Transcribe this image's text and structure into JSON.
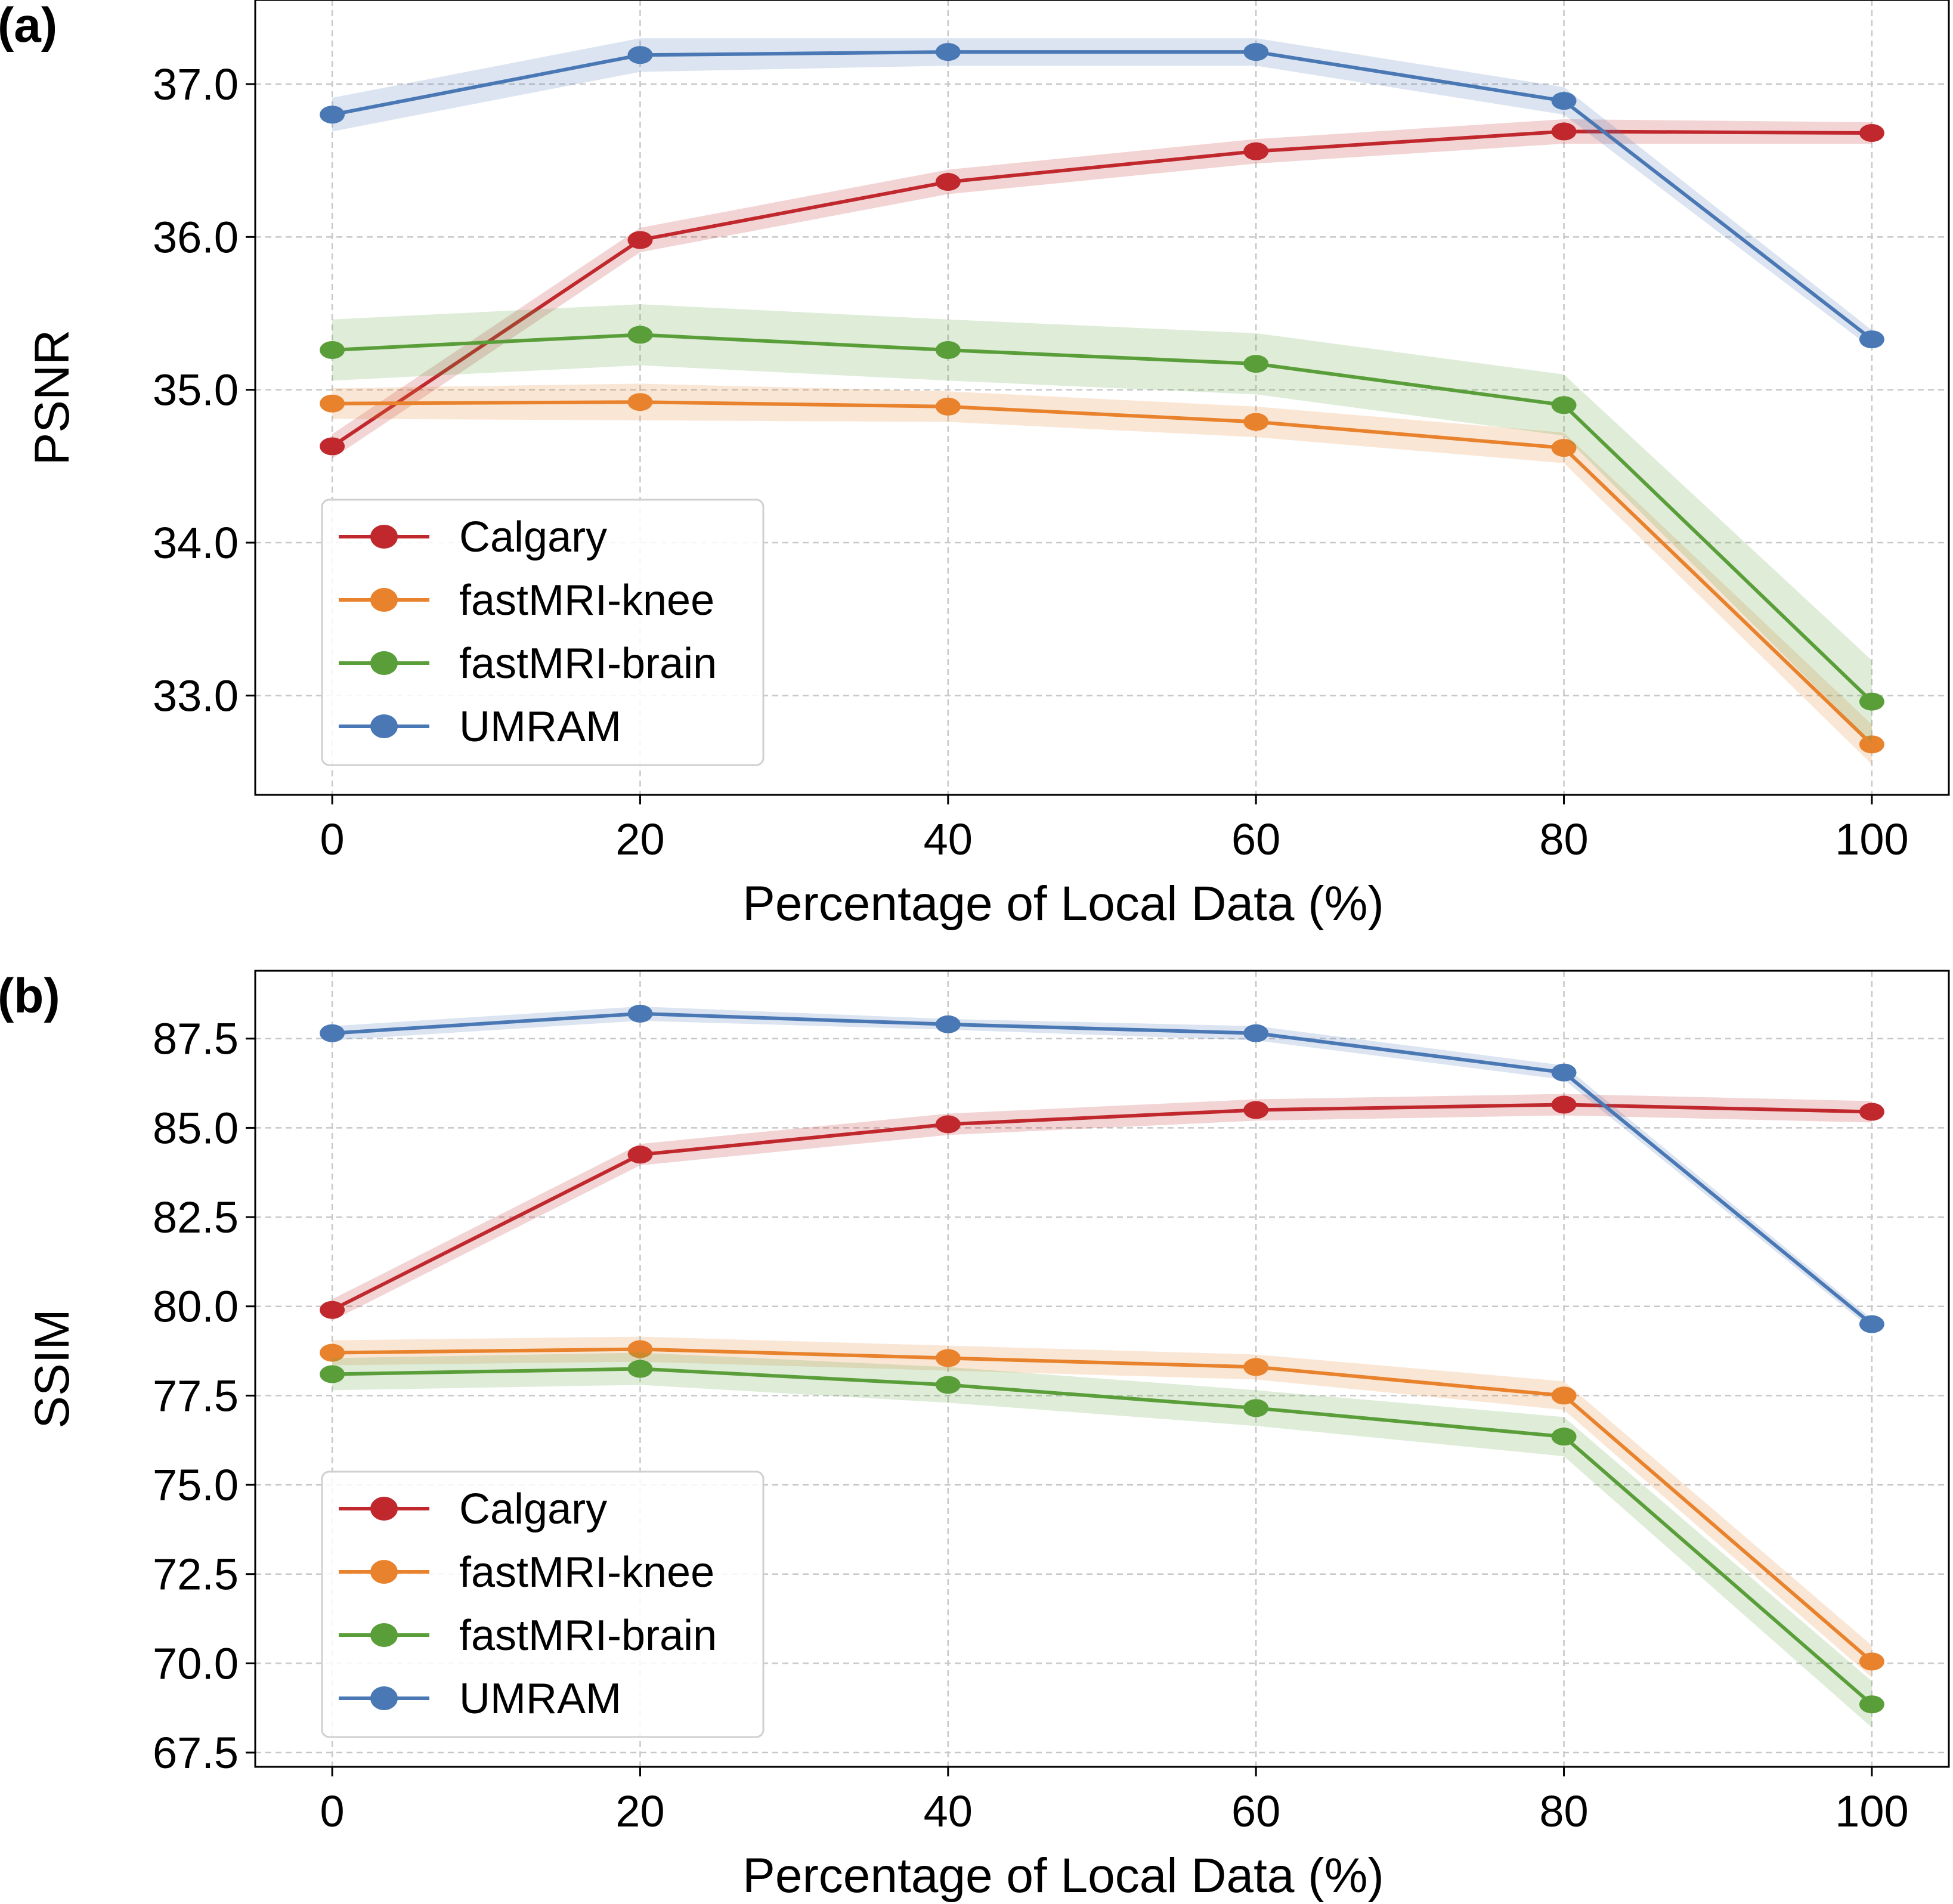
{
  "colors": {
    "Calgary": "#c0282d",
    "fastMRI-knee": "#e8822c",
    "fastMRI-brain": "#5a9e3a",
    "UMRAM": "#4a78b5"
  },
  "chart_data": [
    {
      "type": "line",
      "panel_label": "(a)",
      "xlabel": "Percentage of Local Data (%)",
      "ylabel": "PSNR",
      "x": [
        0,
        20,
        40,
        60,
        80,
        100
      ],
      "xlim": [
        -5,
        105
      ],
      "ylim": [
        32.35,
        37.55
      ],
      "xticks": [
        0,
        20,
        40,
        60,
        80,
        100
      ],
      "xtick_labels": [
        "0",
        "20",
        "40",
        "60",
        "80",
        "100"
      ],
      "yticks": [
        33.0,
        34.0,
        35.0,
        36.0,
        37.0
      ],
      "ytick_labels": [
        "33.0",
        "34.0",
        "35.0",
        "36.0",
        "37.0"
      ],
      "grid": true,
      "legend_position": "lower-left",
      "series": [
        {
          "name": "Calgary",
          "values": [
            34.63,
            35.98,
            36.36,
            36.56,
            36.69,
            36.68
          ],
          "band": [
            0.08,
            0.08,
            0.08,
            0.08,
            0.08,
            0.07
          ]
        },
        {
          "name": "fastMRI-knee",
          "values": [
            34.91,
            34.92,
            34.89,
            34.79,
            34.62,
            32.68
          ],
          "band": [
            0.1,
            0.12,
            0.1,
            0.1,
            0.1,
            0.13
          ]
        },
        {
          "name": "fastMRI-brain",
          "values": [
            35.26,
            35.36,
            35.26,
            35.17,
            34.9,
            32.96
          ],
          "band": [
            0.2,
            0.2,
            0.2,
            0.2,
            0.2,
            0.27
          ]
        },
        {
          "name": "UMRAM",
          "values": [
            36.8,
            37.19,
            37.21,
            37.21,
            36.89,
            35.33
          ],
          "band": [
            0.11,
            0.11,
            0.09,
            0.09,
            0.09,
            0.06
          ]
        }
      ]
    },
    {
      "type": "line",
      "panel_label": "(b)",
      "xlabel": "Percentage of Local Data (%)",
      "ylabel": "SSIM",
      "x": [
        0,
        20,
        40,
        60,
        80,
        100
      ],
      "xlim": [
        -5,
        105
      ],
      "ylim": [
        67.1,
        89.4
      ],
      "xticks": [
        0,
        20,
        40,
        60,
        80,
        100
      ],
      "xtick_labels": [
        "0",
        "20",
        "40",
        "60",
        "80",
        "100"
      ],
      "yticks": [
        67.5,
        70.0,
        72.5,
        75.0,
        77.5,
        80.0,
        82.5,
        85.0,
        87.5
      ],
      "ytick_labels": [
        "67.5",
        "70.0",
        "72.5",
        "75.0",
        "77.5",
        "80.0",
        "82.5",
        "85.0",
        "87.5"
      ],
      "grid": true,
      "legend_position": "lower-left",
      "series": [
        {
          "name": "Calgary",
          "values": [
            79.9,
            84.25,
            85.1,
            85.5,
            85.65,
            85.45
          ],
          "band": [
            0.3,
            0.3,
            0.3,
            0.3,
            0.3,
            0.3
          ]
        },
        {
          "name": "fastMRI-knee",
          "values": [
            78.7,
            78.8,
            78.55,
            78.3,
            77.5,
            70.05
          ],
          "band": [
            0.35,
            0.35,
            0.35,
            0.35,
            0.4,
            0.45
          ]
        },
        {
          "name": "fastMRI-brain",
          "values": [
            78.1,
            78.25,
            77.8,
            77.15,
            76.35,
            68.85
          ],
          "band": [
            0.45,
            0.45,
            0.5,
            0.5,
            0.55,
            0.65
          ]
        },
        {
          "name": "UMRAM",
          "values": [
            87.65,
            88.2,
            87.9,
            87.65,
            86.55,
            79.5
          ],
          "band": [
            0.2,
            0.2,
            0.15,
            0.2,
            0.2,
            0.15
          ]
        }
      ]
    }
  ]
}
